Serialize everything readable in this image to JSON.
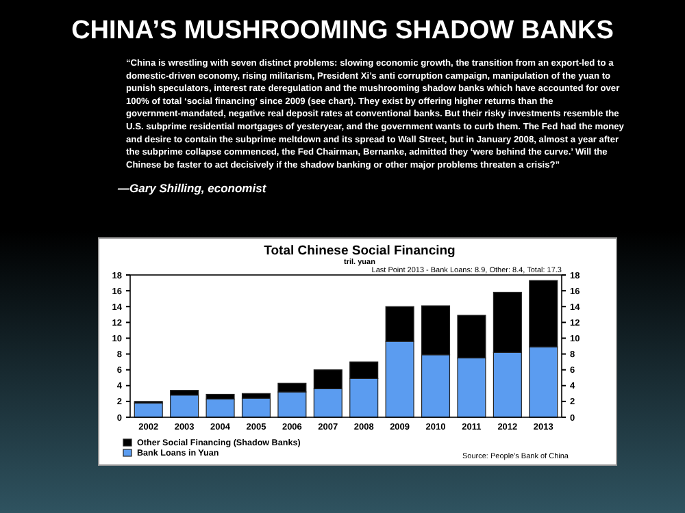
{
  "chart_data": {
    "type": "bar",
    "stacked": true,
    "title": "Total Chinese Social Financing",
    "subtitle": "tril. yuan",
    "annotations": [
      "CHINA’S MUSHROOMING SHADOW BANKS",
      "“China is wrestling with seven distinct problems: slowing economic growth, the transition from an export-led to a domestic-driven economy, rising militarism, President Xi’s anti corruption campaign, manipulation of the yuan to punish speculators, interest rate deregulation and the mushrooming shadow banks which have accounted for over 100% of total ‘social financing’ since 2009 (see chart). They exist by offering higher returns than the government-mandated, negative real deposit rates at conventional banks. But their risky investments resemble the U.S. subprime residential mortgages of yesteryear, and the government wants to curb them. The Fed had the money and desire to contain the subprime meltdown and its spread to Wall Street, but in January 2008, almost a year after the subprime collapse commenced, the Fed Chairman, Bernanke, admitted they ‘were behind the curve.’ Will the Chinese be faster to act decisively if the shadow banking or other major problems threaten a crisis?”",
      "—Gary Shilling, economist",
      "Last Point 2013 - Bank Loans: 8.9, Other: 8.4, Total: 17.3",
      "Source: People's Bank of China"
    ],
    "categories": [
      "2002",
      "2003",
      "2004",
      "2005",
      "2006",
      "2007",
      "2008",
      "2009",
      "2010",
      "2011",
      "2012",
      "2013"
    ],
    "series": [
      {
        "name": "Bank Loans in Yuan",
        "color": "#5b9cf0",
        "values": [
          1.8,
          2.8,
          2.3,
          2.4,
          3.2,
          3.6,
          4.9,
          9.6,
          7.9,
          7.5,
          8.2,
          8.9
        ]
      },
      {
        "name": "Other Social Financing (Shadow Banks)",
        "color": "#000000",
        "values": [
          0.2,
          0.6,
          0.6,
          0.6,
          1.1,
          2.4,
          2.1,
          4.4,
          6.2,
          5.4,
          7.6,
          8.4
        ]
      }
    ],
    "ylim": [
      0,
      18
    ],
    "yticks": [
      0,
      2,
      4,
      6,
      8,
      10,
      12,
      14,
      16,
      18
    ],
    "y2lim": [
      0,
      18
    ],
    "y2ticks": [
      0,
      2,
      4,
      6,
      8,
      10,
      12,
      14,
      16,
      18
    ],
    "grid": false,
    "legend": "bottom left"
  }
}
